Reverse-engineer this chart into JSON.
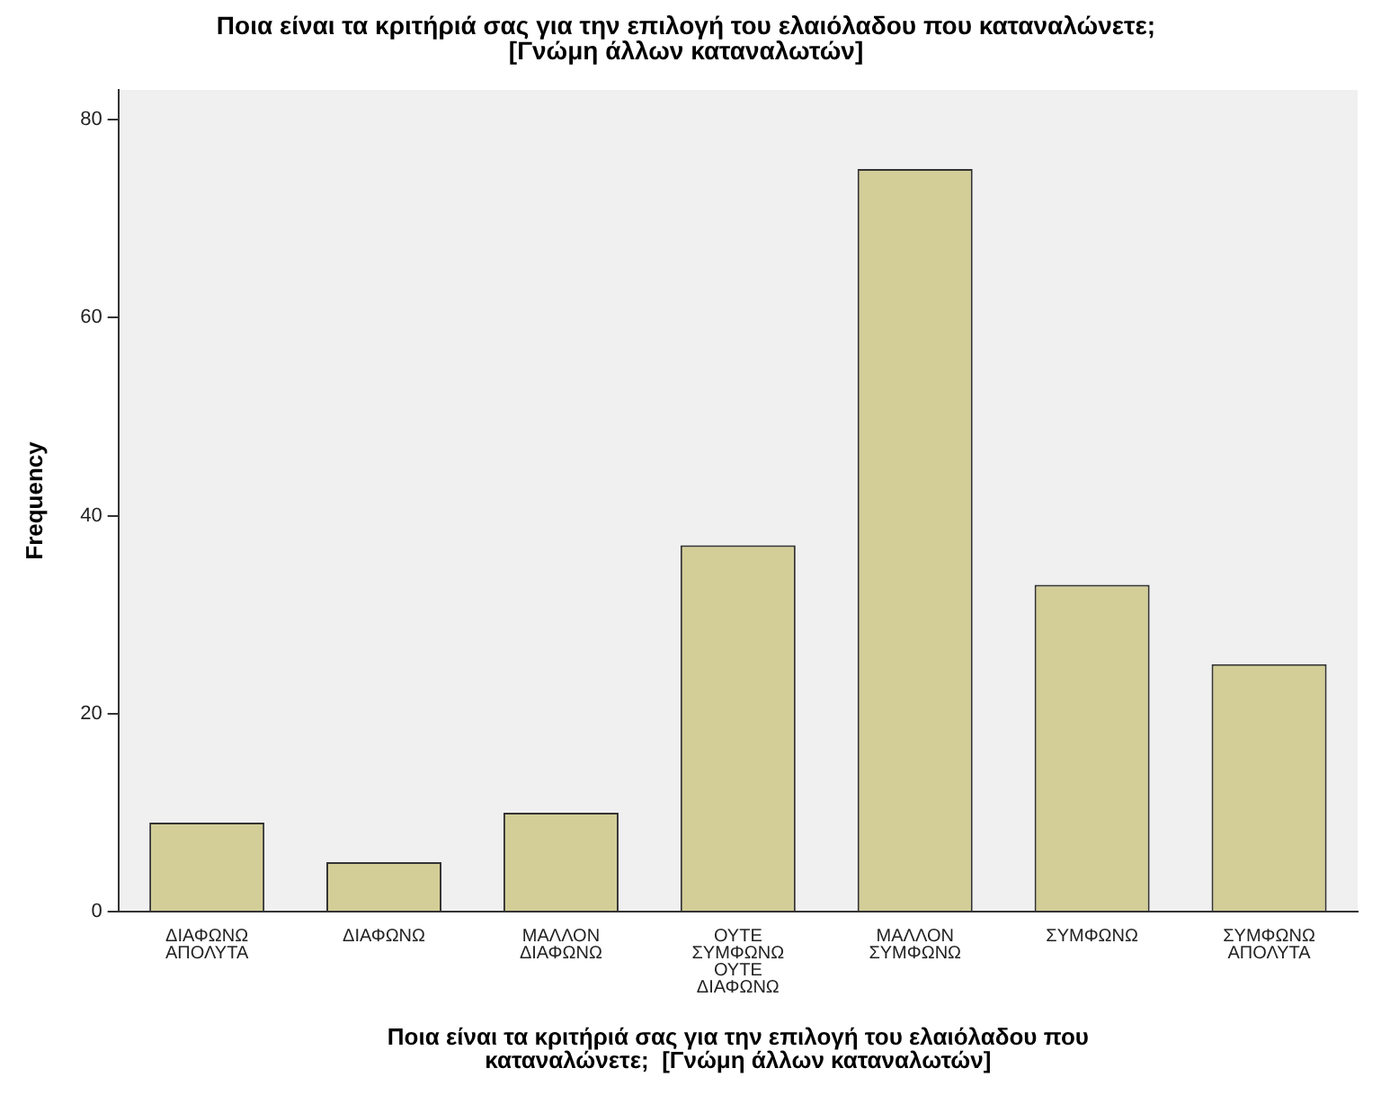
{
  "chart_data": {
    "type": "bar",
    "title": "Ποια είναι τα κριτήριά σας για την επιλογή του ελαιόλαδου που καταναλώνετε;\n[Γνώμη άλλων καταναλωτών]",
    "xlabel": "Ποια είναι τα κριτήριά σας για την επιλογή του ελαιόλαδου που\nκαταναλώνετε;  [Γνώμη άλλων καταναλωτών]",
    "ylabel": "Frequency",
    "categories": [
      "ΔΙΑΦΩΝΩ\nΑΠΟΛΥΤΑ",
      "ΔΙΑΦΩΝΩ",
      "ΜΑΛΛΟΝ\nΔΙΑΦΩΝΩ",
      "ΟΥΤΕ\nΣΥΜΦΩΝΩ\nΟΥΤΕ\nΔΙΑΦΩΝΩ",
      "ΜΑΛΛΟΝ\nΣΥΜΦΩΝΩ",
      "ΣΥΜΦΩΝΩ",
      "ΣΥΜΦΩΝΩ\nΑΠΟΛΥΤΑ"
    ],
    "values": [
      9,
      5,
      10,
      37,
      75,
      33,
      25
    ],
    "color": "#d3ce97",
    "ylim": [
      0,
      83
    ],
    "yticks": [
      0,
      20,
      40,
      60,
      80
    ],
    "grid": false,
    "legend": false
  }
}
